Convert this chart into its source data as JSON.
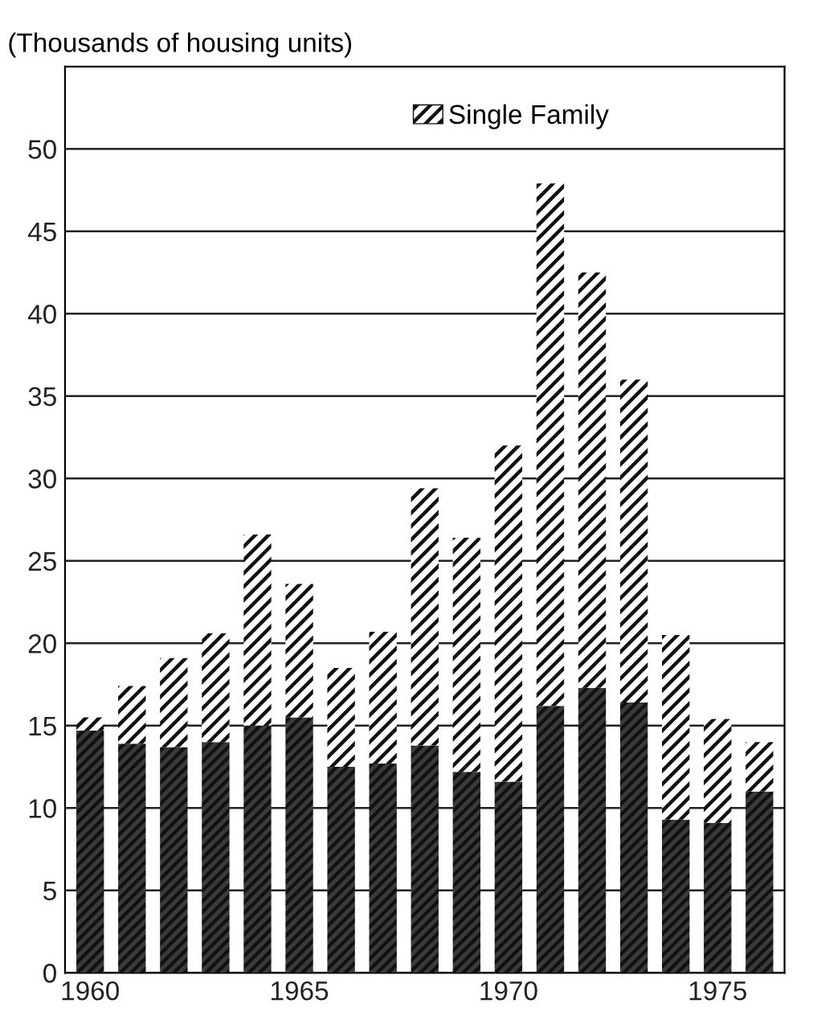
{
  "chart_data": {
    "type": "bar",
    "stacked": true,
    "ylabel": "(Thousands of housing units)",
    "categories": [
      "1960",
      null,
      null,
      null,
      null,
      "1965",
      null,
      null,
      null,
      null,
      "1970",
      null,
      null,
      null,
      null,
      "1975",
      null
    ],
    "series": [
      {
        "color": "#3a3a3a",
        "values": [
          14.7,
          13.9,
          13.7,
          14.0,
          15.0,
          15.5,
          12.5,
          12.7,
          13.8,
          12.2,
          11.6,
          16.2,
          17.3,
          16.4,
          9.3,
          9.1,
          11.0
        ]
      },
      {
        "name": "Single Family",
        "color": "#ffffff",
        "values": [
          0.8,
          3.5,
          5.4,
          6.6,
          11.6,
          8.1,
          6.0,
          8.0,
          15.6,
          14.2,
          20.4,
          31.7,
          25.2,
          19.6,
          11.2,
          6.3,
          3.0
        ]
      }
    ],
    "ylim": [
      0,
      55
    ],
    "yticks": [
      0,
      5,
      10,
      15,
      20,
      25,
      30,
      35,
      40,
      45,
      50
    ],
    "grid": "y",
    "legend": "top"
  }
}
